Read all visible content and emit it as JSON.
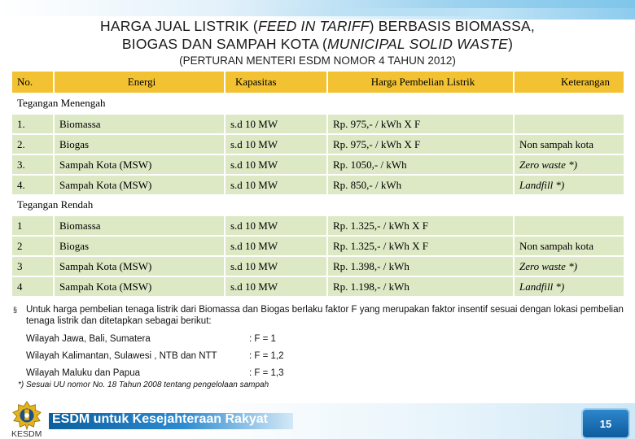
{
  "header": {
    "title_line1_prefix": "HARGA JUAL LISTRIK (",
    "title_line1_italic": "FEED IN TARIFF",
    "title_line1_suffix": ") BERBASIS BIOMASSA,",
    "title_line2_prefix": "BIOGAS DAN  SAMPAH KOTA  (",
    "title_line2_italic": "MUNICIPAL SOLID WASTE",
    "title_line2_suffix": ")",
    "subtitle": "(PERTURAN MENTERI ESDM NOMOR 4 TAHUN 2012)"
  },
  "table": {
    "columns": [
      "No.",
      "Energi",
      "Kapasitas",
      "Harga Pembelian Listrik",
      "Keterangan"
    ],
    "section_medium": "Tegangan Menengah",
    "medium_rows": [
      {
        "no": "1.",
        "energi": "Biomassa",
        "kapasitas": "s.d 10 MW",
        "harga": "Rp. 975,- / kWh  X  F",
        "ket": "",
        "ket_italic": false
      },
      {
        "no": "2.",
        "energi": "Biogas",
        "kapasitas": "s.d 10 MW",
        "harga": "Rp. 975,- / kWh  X  F",
        "ket": "Non sampah kota",
        "ket_italic": false
      },
      {
        "no": "3.",
        "energi": "Sampah Kota (MSW)",
        "kapasitas": "s.d 10 MW",
        "harga": "Rp. 1050,- / kWh",
        "ket": "Zero waste *)",
        "ket_italic": true
      },
      {
        "no": "4.",
        "energi": "Sampah Kota (MSW)",
        "kapasitas": "s.d 10 MW",
        "harga": "Rp. 850,- / kWh",
        "ket": "Landfill *)",
        "ket_italic": true
      }
    ],
    "section_low": "Tegangan Rendah",
    "low_rows": [
      {
        "no": "1",
        "energi": "Biomassa",
        "kapasitas": "s.d 10 MW",
        "harga": "Rp. 1.325,- / kWh  X  F",
        "ket": "",
        "ket_italic": false
      },
      {
        "no": "2",
        "energi": "Biogas",
        "kapasitas": "s.d 10 MW",
        "harga": "Rp. 1.325,- / kWh  X  F",
        "ket": "Non sampah kota",
        "ket_italic": false
      },
      {
        "no": "3",
        "energi": "Sampah Kota (MSW)",
        "kapasitas": "s.d 10 MW",
        "harga": "Rp. 1.398,- / kWh",
        "ket": "Zero waste *)",
        "ket_italic": true
      },
      {
        "no": "4",
        "energi": "Sampah Kota (MSW)",
        "kapasitas": "s.d 10 MW",
        "harga": "Rp. 1.198,- / kWh",
        "ket": "Landfill *)",
        "ket_italic": true
      }
    ]
  },
  "note": {
    "bullet": "§",
    "text": "Untuk harga pembelian tenaga listrik dari Biomassa dan Biogas berlaku faktor  F  yang merupakan faktor insentif sesuai dengan lokasi pembelian tenaga listrik  dan ditetapkan sebagai berikut:"
  },
  "regions": [
    {
      "wilayah": "Wilayah Jawa, Bali, Sumatera",
      "faktor": ": F = 1"
    },
    {
      "wilayah": "Wilayah Kalimantan, Sulawesi , NTB dan NTT",
      "faktor": ": F = 1,2"
    },
    {
      "wilayah": "Wilayah Maluku dan Papua",
      "faktor": ": F = 1,3"
    }
  ],
  "footnote": "*) Sesuai UU nomor No. 18 Tahun 2008 tentang pengelolaan sampah",
  "footer": {
    "logo_label": "KESDM",
    "slogan": "ESDM untuk Kesejahteraan Rakyat",
    "page_number": "15"
  },
  "colors": {
    "header_row": "#f2c232",
    "data_row": "#dde8c4",
    "brand_blue": "#0b5f9e"
  }
}
